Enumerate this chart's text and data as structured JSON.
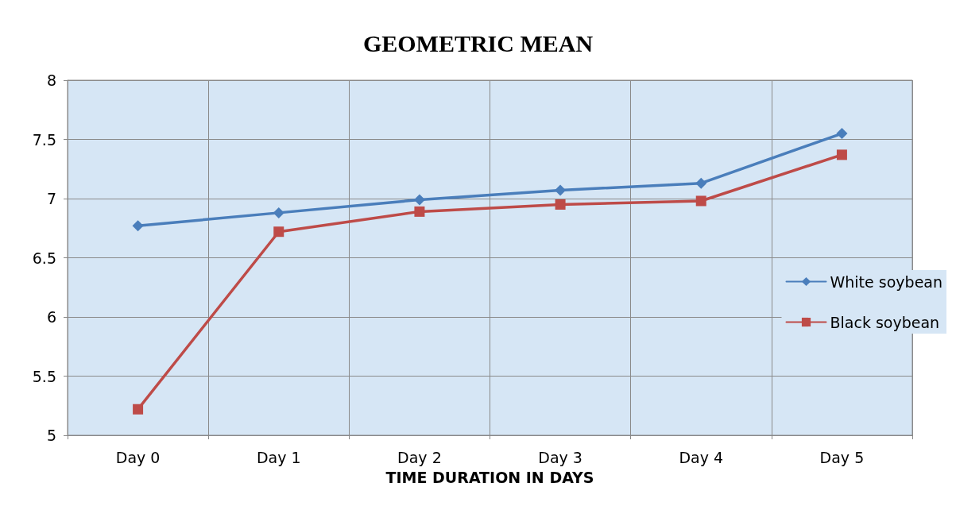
{
  "chart_data": {
    "type": "line",
    "title": "GEOMETRIC MEAN",
    "xlabel": "TIME DURATION IN DAYS",
    "categories": [
      "Day 0",
      "Day 1",
      "Day 2",
      "Day 3",
      "Day 4",
      "Day 5"
    ],
    "series": [
      {
        "name": "White soybean",
        "color": "#4a7ebb",
        "marker": "diamond",
        "values": [
          6.77,
          6.88,
          6.99,
          7.07,
          7.13,
          7.55
        ]
      },
      {
        "name": "Black soybean",
        "color": "#be4b48",
        "marker": "square",
        "values": [
          5.22,
          6.72,
          6.89,
          6.95,
          6.98,
          7.37
        ]
      }
    ],
    "ylim": [
      5,
      8
    ],
    "yticks": [
      5,
      5.5,
      6,
      6.5,
      7,
      7.5,
      8
    ],
    "grid": true,
    "legend": "right",
    "line_style": "solid"
  }
}
